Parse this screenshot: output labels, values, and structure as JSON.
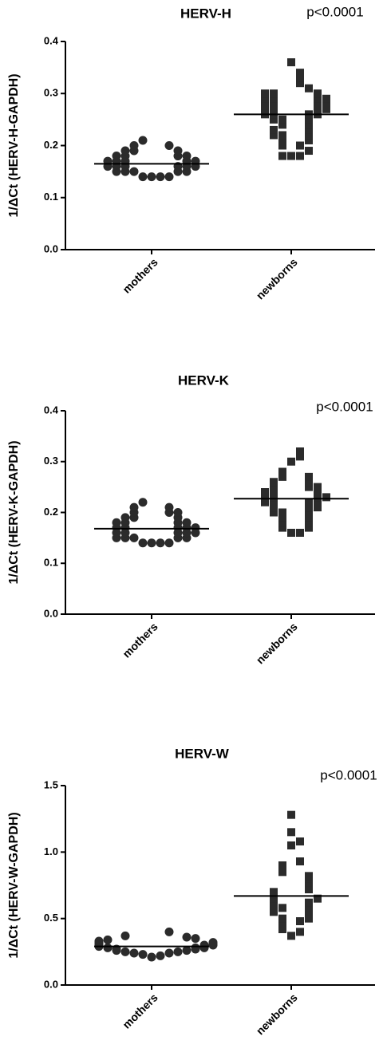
{
  "chart_data": [
    {
      "type": "dot",
      "title": "HERV-H",
      "annotation": "p<0.0001",
      "y_label": "1/ΔCt (HERV-H-GAPDH)",
      "categories": [
        "mothers",
        "newborns"
      ],
      "markers": [
        "circle",
        "square"
      ],
      "color": "#2b2b2b",
      "points": [
        [
          0.14,
          0.14,
          0.14,
          0.14,
          0.15,
          0.15,
          0.15,
          0.15,
          0.15,
          0.16,
          0.16,
          0.16,
          0.16,
          0.16,
          0.16,
          0.17,
          0.17,
          0.17,
          0.17,
          0.17,
          0.18,
          0.18,
          0.18,
          0.18,
          0.19,
          0.19,
          0.19,
          0.2,
          0.2,
          0.21
        ],
        [
          0.18,
          0.18,
          0.18,
          0.19,
          0.2,
          0.2,
          0.21,
          0.21,
          0.22,
          0.22,
          0.22,
          0.23,
          0.23,
          0.24,
          0.24,
          0.25,
          0.25,
          0.25,
          0.26,
          0.26,
          0.26,
          0.26,
          0.27,
          0.27,
          0.27,
          0.27,
          0.28,
          0.28,
          0.28,
          0.28,
          0.29,
          0.29,
          0.29,
          0.29,
          0.3,
          0.3,
          0.3,
          0.31,
          0.32,
          0.33,
          0.34,
          0.36
        ]
      ],
      "means": [
        0.165,
        0.26
      ],
      "ylim": [
        0,
        0.4
      ],
      "yticks": [
        {
          "value": 0,
          "label": "0.0"
        },
        0.1,
        0.2,
        0.3,
        0.4
      ]
    },
    {
      "type": "dot",
      "title": "HERV-K",
      "annotation": "p<0.0001",
      "y_label": "1/ΔCt (HERV-K-GAPDH)",
      "categories": [
        "mothers",
        "newborns"
      ],
      "markers": [
        "circle",
        "square"
      ],
      "color": "#2b2b2b",
      "points": [
        [
          0.14,
          0.14,
          0.14,
          0.14,
          0.15,
          0.15,
          0.15,
          0.15,
          0.15,
          0.16,
          0.16,
          0.16,
          0.16,
          0.16,
          0.17,
          0.17,
          0.17,
          0.17,
          0.17,
          0.18,
          0.18,
          0.18,
          0.18,
          0.19,
          0.19,
          0.19,
          0.2,
          0.2,
          0.2,
          0.21,
          0.21,
          0.22
        ],
        [
          0.16,
          0.16,
          0.17,
          0.17,
          0.18,
          0.18,
          0.19,
          0.19,
          0.2,
          0.2,
          0.2,
          0.21,
          0.21,
          0.21,
          0.22,
          0.22,
          0.22,
          0.22,
          0.23,
          0.23,
          0.23,
          0.23,
          0.24,
          0.24,
          0.24,
          0.25,
          0.25,
          0.25,
          0.26,
          0.26,
          0.27,
          0.27,
          0.28,
          0.3,
          0.31,
          0.32
        ]
      ],
      "means": [
        0.168,
        0.227
      ],
      "ylim": [
        0,
        0.4
      ],
      "yticks": [
        {
          "value": 0,
          "label": "0.0"
        },
        0.1,
        0.2,
        0.3,
        0.4
      ]
    },
    {
      "type": "dot",
      "title": "HERV-W",
      "annotation": "p<0.0001",
      "y_label": "1/ΔCt (HERV-W-GAPDH)",
      "categories": [
        "mothers",
        "newborns"
      ],
      "markers": [
        "circle",
        "square"
      ],
      "color": "#2b2b2b",
      "points": [
        [
          0.21,
          0.22,
          0.23,
          0.24,
          0.24,
          0.25,
          0.25,
          0.26,
          0.26,
          0.27,
          0.27,
          0.28,
          0.28,
          0.28,
          0.29,
          0.29,
          0.3,
          0.3,
          0.3,
          0.31,
          0.31,
          0.32,
          0.32,
          0.33,
          0.34,
          0.35,
          0.36,
          0.37,
          0.4
        ],
        [
          0.37,
          0.4,
          0.42,
          0.45,
          0.48,
          0.5,
          0.5,
          0.52,
          0.55,
          0.55,
          0.58,
          0.6,
          0.6,
          0.62,
          0.63,
          0.65,
          0.65,
          0.67,
          0.68,
          0.7,
          0.72,
          0.73,
          0.75,
          0.77,
          0.78,
          0.8,
          0.82,
          0.85,
          0.87,
          0.9,
          0.93,
          1.05,
          1.08,
          1.15,
          1.28
        ]
      ],
      "means": [
        0.29,
        0.67
      ],
      "ylim": [
        0,
        1.5
      ],
      "yticks": [
        {
          "value": 0,
          "label": "0.0"
        },
        0.5,
        {
          "value": 1,
          "label": "1.0"
        },
        1.5
      ]
    }
  ]
}
